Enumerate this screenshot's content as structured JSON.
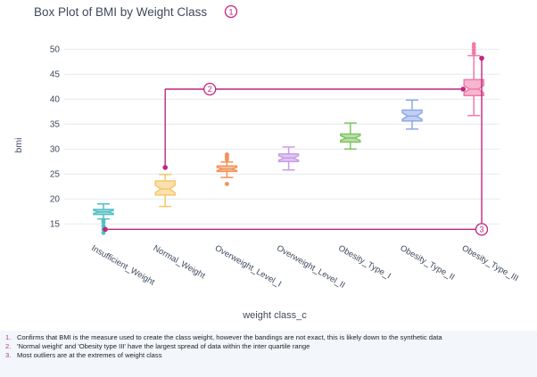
{
  "chart_data": {
    "type": "box",
    "title": "Box Plot of BMI by Weight Class",
    "xlabel": "weight class_c",
    "ylabel": "bmi",
    "ylim": [
      12,
      52
    ],
    "yticks": [
      15,
      20,
      25,
      30,
      35,
      40,
      45,
      50
    ],
    "grid": true,
    "legend": "none",
    "categories": [
      "Insufficient_Weight",
      "Normal_Weight",
      "Overweight_Level_I",
      "Overweight_Level_II",
      "Obesity_Type_I",
      "Obesity_Type_II",
      "Obesity_Type_III"
    ],
    "boxes": [
      {
        "category": "Insufficient_Weight",
        "min": 16.0,
        "q1": 16.9,
        "median": 17.4,
        "q3": 17.9,
        "max": 19.0,
        "outliers": [
          15.7,
          15.3,
          14.6,
          13.9,
          13.2
        ],
        "color": "#52bfc4"
      },
      {
        "category": "Normal_Weight",
        "min": 18.5,
        "q1": 20.8,
        "median": 22.0,
        "q3": 23.6,
        "max": 24.9,
        "outliers": [],
        "color": "#f5c76b"
      },
      {
        "category": "Overweight_Level_I",
        "min": 24.3,
        "q1": 25.5,
        "median": 26.0,
        "q3": 26.6,
        "max": 27.4,
        "outliers": [
          23.0,
          27.9,
          28.3,
          28.6,
          28.9
        ],
        "color": "#f2935a"
      },
      {
        "category": "Overweight_Level_II",
        "min": 25.8,
        "q1": 27.5,
        "median": 28.2,
        "q3": 29.0,
        "max": 30.4,
        "outliers": [],
        "color": "#c79be8"
      },
      {
        "category": "Obesity_Type_I",
        "min": 30.0,
        "q1": 31.4,
        "median": 32.2,
        "q3": 33.0,
        "max": 35.2,
        "outliers": [],
        "color": "#7dc460"
      },
      {
        "category": "Obesity_Type_II",
        "min": 34.0,
        "q1": 35.6,
        "median": 36.6,
        "q3": 37.8,
        "max": 39.8,
        "outliers": [],
        "color": "#8ea8e8"
      },
      {
        "category": "Obesity_Type_III",
        "min": 36.7,
        "q1": 40.7,
        "median": 42.0,
        "q3": 43.9,
        "max": 48.7,
        "outliers": [
          49.2,
          49.8,
          50.4,
          51.0
        ],
        "color": "#f07aa8"
      }
    ],
    "annotations": {
      "marker_labels": [
        "1",
        "2",
        "3"
      ],
      "accent_color": "#c0257f",
      "marker2_line_y": 42,
      "marker3_line_y": 13.9,
      "marker2_from_y": 26.3,
      "marker3_from_y": 48.2
    }
  },
  "notes": [
    {
      "num": "1.",
      "text": "Confirms that BMI is the measure used to create the class weight, however the bandings are not exact, this is likely down to the synthetic data"
    },
    {
      "num": "2.",
      "text": "'Normal weight' and 'Obesity type III' have the largest spread of data within the inter quartile range"
    },
    {
      "num": "3.",
      "text": "Most outliers are at the extremes of weight class"
    }
  ]
}
